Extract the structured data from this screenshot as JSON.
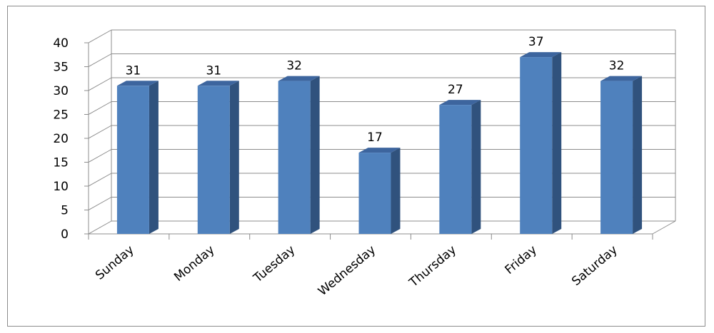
{
  "chart_data": {
    "type": "bar",
    "categories": [
      "Sunday",
      "Monday",
      "Tuesday",
      "Wednesday",
      "Thursday",
      "Friday",
      "Saturday"
    ],
    "values": [
      31,
      31,
      32,
      17,
      27,
      37,
      32
    ],
    "title": "",
    "xlabel": "",
    "ylabel": "",
    "ylim": [
      0,
      40
    ],
    "yticks": [
      0,
      5,
      10,
      15,
      20,
      25,
      30,
      35,
      40
    ],
    "grid": true,
    "legend": "none",
    "style": "3d-column",
    "data_labels": true
  },
  "colors": {
    "bar_front": "#4f81bd",
    "bar_side": "#30527d",
    "bar_top": "#3d659e",
    "gridline": "#8c8c8c",
    "frame": "#8c8c8c"
  }
}
